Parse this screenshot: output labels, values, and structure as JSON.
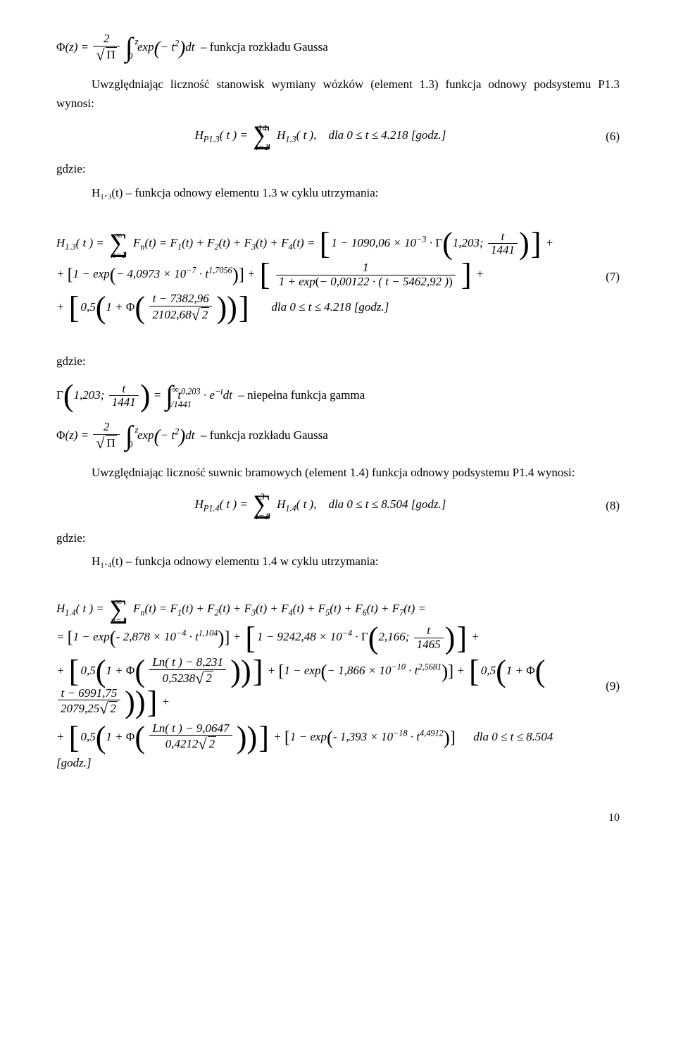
{
  "eq_phi_label": "funkcja rozkładu Gaussa",
  "para1": "Uwzględniając liczność stanowisk wymiany wózków (element 1.3) funkcja odnowy podsystemu P1.3 wynosi:",
  "eq6": {
    "left": "H",
    "sub1": "P1.3",
    "sum_top": "14",
    "sum_bot": "i=1",
    "right": "( t ),",
    "sub2": "1.3",
    "cond": "dla 0 ≤ t ≤ 4.218 [godz.]",
    "num": "(6)"
  },
  "gdzie": "gdzie:",
  "h13_desc": "H₁.₃(t) – funkcja odnowy elementu 1.3 w cyklu utrzymania:",
  "eq7": {
    "line1a": "F",
    "line1_const1": "1090,06",
    "line1_exp1": "−3",
    "line1_gamma": "1,203;",
    "line1_den": "1441",
    "line2_coef": "4,0973",
    "line2_exp": "−7",
    "line2_texp": "1,7056",
    "line2_coef2": "0,00122",
    "line2_sub": "5462,92",
    "line3_coef": "0,5",
    "line3_num": "7382,96",
    "line3_den": "2102,68",
    "line3_cond": "dla 0 ≤ t ≤ 4.218 [godz.]",
    "num": "(7)"
  },
  "gamma_label": "niepełna funkcja gamma",
  "gamma": {
    "a": "1,203;",
    "den": "1441",
    "exp": "0,203",
    "isub2": "1441"
  },
  "para2": "Uwzględniając liczność suwnic bramowych (element 1.4) funkcja odnowy podsystemu P1.4 wynosi:",
  "eq8": {
    "sub1": "P1.4",
    "sub2": "1.4",
    "sum_top": "3",
    "sum_bot": "i=1",
    "cond": "dla 0 ≤ t ≤ 8.504 [godz.]",
    "num": "(8)"
  },
  "h14_desc": "H₁.₄(t) – funkcja odnowy elementu 1.4 w cyklu utrzymania:",
  "eq9": {
    "l2_coef": "2,878",
    "l2_exp": "−4",
    "l2_texp": "1,104",
    "l2_c2": "9242,48",
    "l2_e2": "−4",
    "l2_g": "2,166;",
    "l2_den": "1465",
    "l3_a": "0,5",
    "l3_num1": "8,231",
    "l3_den1": "0,5238",
    "l3_c": "1,866",
    "l3_e": "−10",
    "l3_te": "2,5681",
    "l3_num2": "6991,75",
    "l3_den2": "2079,25",
    "l4_num": "9,0647",
    "l4_den": "0,4212",
    "l4_c": "1,393",
    "l4_e": "−18",
    "l4_te": "4,4912",
    "l4_cond": "dla 0 ≤ t ≤ 8.504 [godz.]",
    "num": "(9)"
  },
  "page": "10"
}
